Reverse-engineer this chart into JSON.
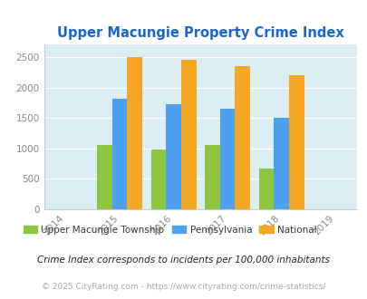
{
  "title": "Upper Macungie Property Crime Index",
  "title_color": "#1a66cc",
  "years": [
    2015,
    2016,
    2017,
    2018
  ],
  "x_ticks": [
    2014,
    2015,
    2016,
    2017,
    2018,
    2019
  ],
  "upper_macungie": [
    1055,
    980,
    1060,
    665
  ],
  "pennsylvania": [
    1820,
    1730,
    1645,
    1505
  ],
  "national": [
    2495,
    2450,
    2345,
    2205
  ],
  "colors": {
    "upper_macungie": "#8dc63f",
    "pennsylvania": "#4d9fef",
    "national": "#f5a623"
  },
  "ylim": [
    0,
    2700
  ],
  "yticks": [
    0,
    500,
    1000,
    1500,
    2000,
    2500
  ],
  "legend_labels": [
    "Upper Macungie Township",
    "Pennsylvania",
    "National"
  ],
  "legend_text_colors": [
    "#333333",
    "#333333",
    "#333333"
  ],
  "footnote1": "Crime Index corresponds to incidents per 100,000 inhabitants",
  "footnote2": "© 2025 CityRating.com - https://www.cityrating.com/crime-statistics/",
  "plot_bg_color": "#daeef3",
  "bar_width": 0.28,
  "xlim": [
    2013.6,
    2019.4
  ],
  "footnote1_color": "#222222",
  "footnote2_color": "#aaaaaa"
}
